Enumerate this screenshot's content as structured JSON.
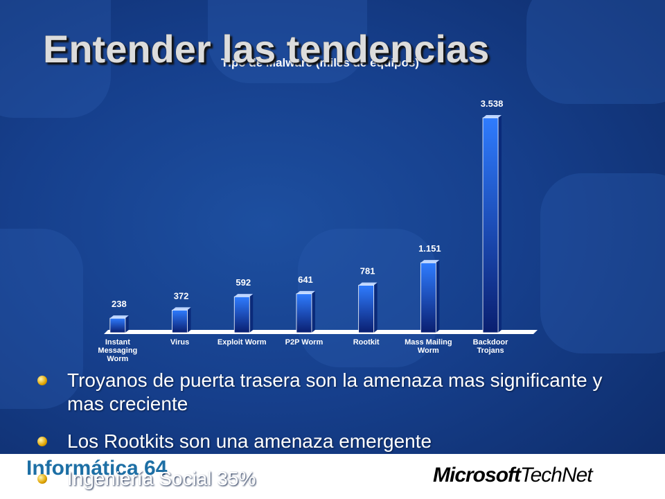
{
  "slide_title": "Entender las tendencias",
  "chart_data": {
    "type": "bar",
    "title": "Tipo de Malware (miles de equipos)",
    "categories": [
      "Instant Messaging Worm",
      "Virus",
      "Exploit Worm",
      "P2P Worm",
      "Rootkit",
      "Mass Mailing Worm",
      "Backdoor Trojans"
    ],
    "values": [
      238,
      372,
      592,
      641,
      781,
      1151,
      3538
    ],
    "value_labels": [
      "238",
      "372",
      "592",
      "641",
      "781",
      "1.151",
      "3.538"
    ],
    "color": "#1f5fd6"
  },
  "bullets": [
    "Troyanos de puerta trasera son la amenaza mas significante y mas creciente",
    "Los Rootkits son una amenaza emergente",
    "Ingeniería Social 35%"
  ],
  "footer": {
    "left_logo": "Informática 64",
    "right_logo_a": "Microsoft",
    "right_logo_b": "TechNet"
  }
}
